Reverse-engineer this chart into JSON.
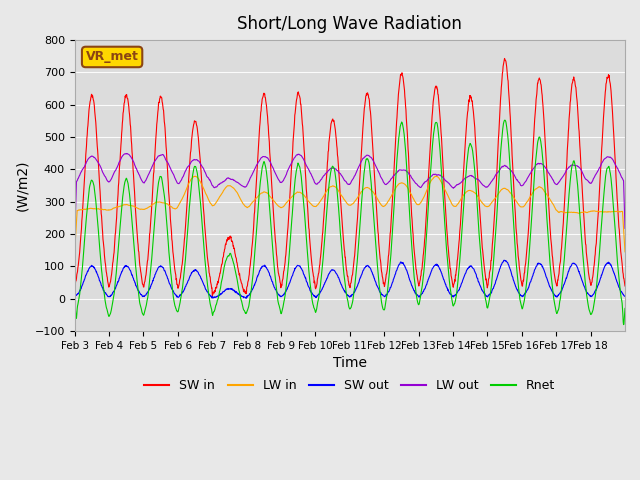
{
  "title": "Short/Long Wave Radiation",
  "xlabel": "Time",
  "ylabel": "(W/m2)",
  "ylim": [
    -100,
    800
  ],
  "yticks": [
    -100,
    0,
    100,
    200,
    300,
    400,
    500,
    600,
    700,
    800
  ],
  "xtick_labels": [
    "Feb 3",
    "Feb 4",
    "Feb 5",
    "Feb 6",
    "Feb 7",
    "Feb 8",
    "Feb 9",
    "Feb 10",
    "Feb 11",
    "Feb 12",
    "Feb 13",
    "Feb 14",
    "Feb 15",
    "Feb 16",
    "Feb 17",
    "Feb 18"
  ],
  "colors": {
    "SW_in": "#ff0000",
    "LW_in": "#ffa500",
    "SW_out": "#0000ff",
    "LW_out": "#9400d3",
    "Rnet": "#00cc00"
  },
  "legend_label": "VR_met",
  "background_color": "#e8e8e8",
  "plot_bg_color": "#dcdcdc"
}
